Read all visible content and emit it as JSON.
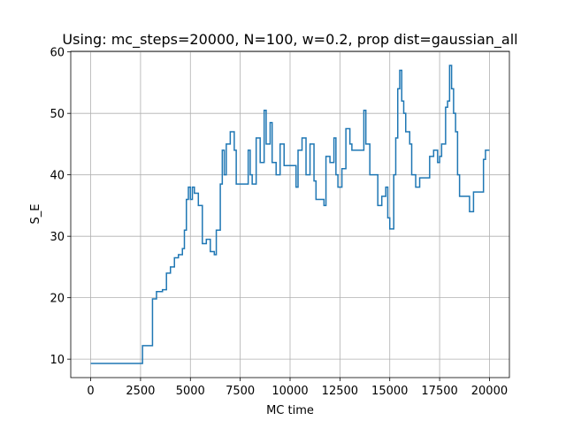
{
  "chart_data": {
    "type": "line",
    "title": "Using: mc_steps=20000, N=100, w=0.2, prop dist=gaussian_all",
    "xlabel": "MC time",
    "ylabel": "S_E",
    "x": [
      0,
      2600,
      3100,
      3300,
      3600,
      3800,
      4000,
      4200,
      4400,
      4600,
      4700,
      4800,
      4900,
      5000,
      5100,
      5200,
      5400,
      5600,
      5800,
      6000,
      6200,
      6300,
      6500,
      6600,
      6700,
      6800,
      7000,
      7200,
      7300,
      7800,
      7900,
      8000,
      8100,
      8300,
      8500,
      8700,
      8800,
      9000,
      9100,
      9300,
      9500,
      9700,
      10200,
      10300,
      10400,
      10600,
      10800,
      11000,
      11200,
      11300,
      11700,
      11800,
      12000,
      12200,
      12300,
      12400,
      12600,
      12800,
      13000,
      13100,
      13600,
      13700,
      13800,
      14000,
      14200,
      14400,
      14600,
      14800,
      14900,
      15000,
      15200,
      15300,
      15400,
      15500,
      15600,
      15700,
      15800,
      16000,
      16100,
      16300,
      16500,
      16800,
      17000,
      17200,
      17400,
      17500,
      17600,
      17800,
      17900,
      18000,
      18100,
      18200,
      18300,
      18400,
      18500,
      18800,
      19000,
      19200,
      19600,
      19700,
      19800,
      20000
    ],
    "series": [
      {
        "name": "S_E",
        "color": "#1f77b4",
        "values": [
          9.3,
          12.2,
          19.8,
          21,
          21.3,
          24,
          25,
          26.5,
          27,
          28,
          31,
          36,
          38,
          36,
          38,
          37,
          35,
          28.8,
          29.5,
          27.5,
          27,
          31,
          38.5,
          44,
          40,
          45,
          47,
          44,
          38.5,
          38.5,
          44,
          40,
          38.5,
          46,
          42,
          50.5,
          45,
          48.5,
          42,
          40,
          45,
          41.5,
          41.5,
          38,
          44,
          46,
          40,
          45,
          39,
          36,
          35,
          43,
          42,
          46,
          40,
          38,
          41,
          47.5,
          45,
          44,
          44,
          50.5,
          45,
          40,
          40,
          35,
          36.5,
          38,
          33,
          31.2,
          40,
          46,
          54,
          57,
          52,
          50,
          47,
          45,
          40,
          38,
          39.5,
          39.5,
          43,
          44,
          42,
          43,
          45,
          51,
          52,
          57.8,
          54,
          50,
          47,
          40,
          36.5,
          36.5,
          34,
          37.2,
          37.2,
          42.5,
          44,
          44
        ]
      }
    ],
    "drawstyle": "steps-post",
    "xlim": [
      -1000,
      21000
    ],
    "xticks": [
      0,
      2500,
      5000,
      7500,
      10000,
      12500,
      15000,
      17500,
      20000
    ],
    "ylim": [
      7,
      60.1
    ],
    "yticks": [
      10,
      20,
      30,
      40,
      50,
      60
    ],
    "grid": true
  }
}
